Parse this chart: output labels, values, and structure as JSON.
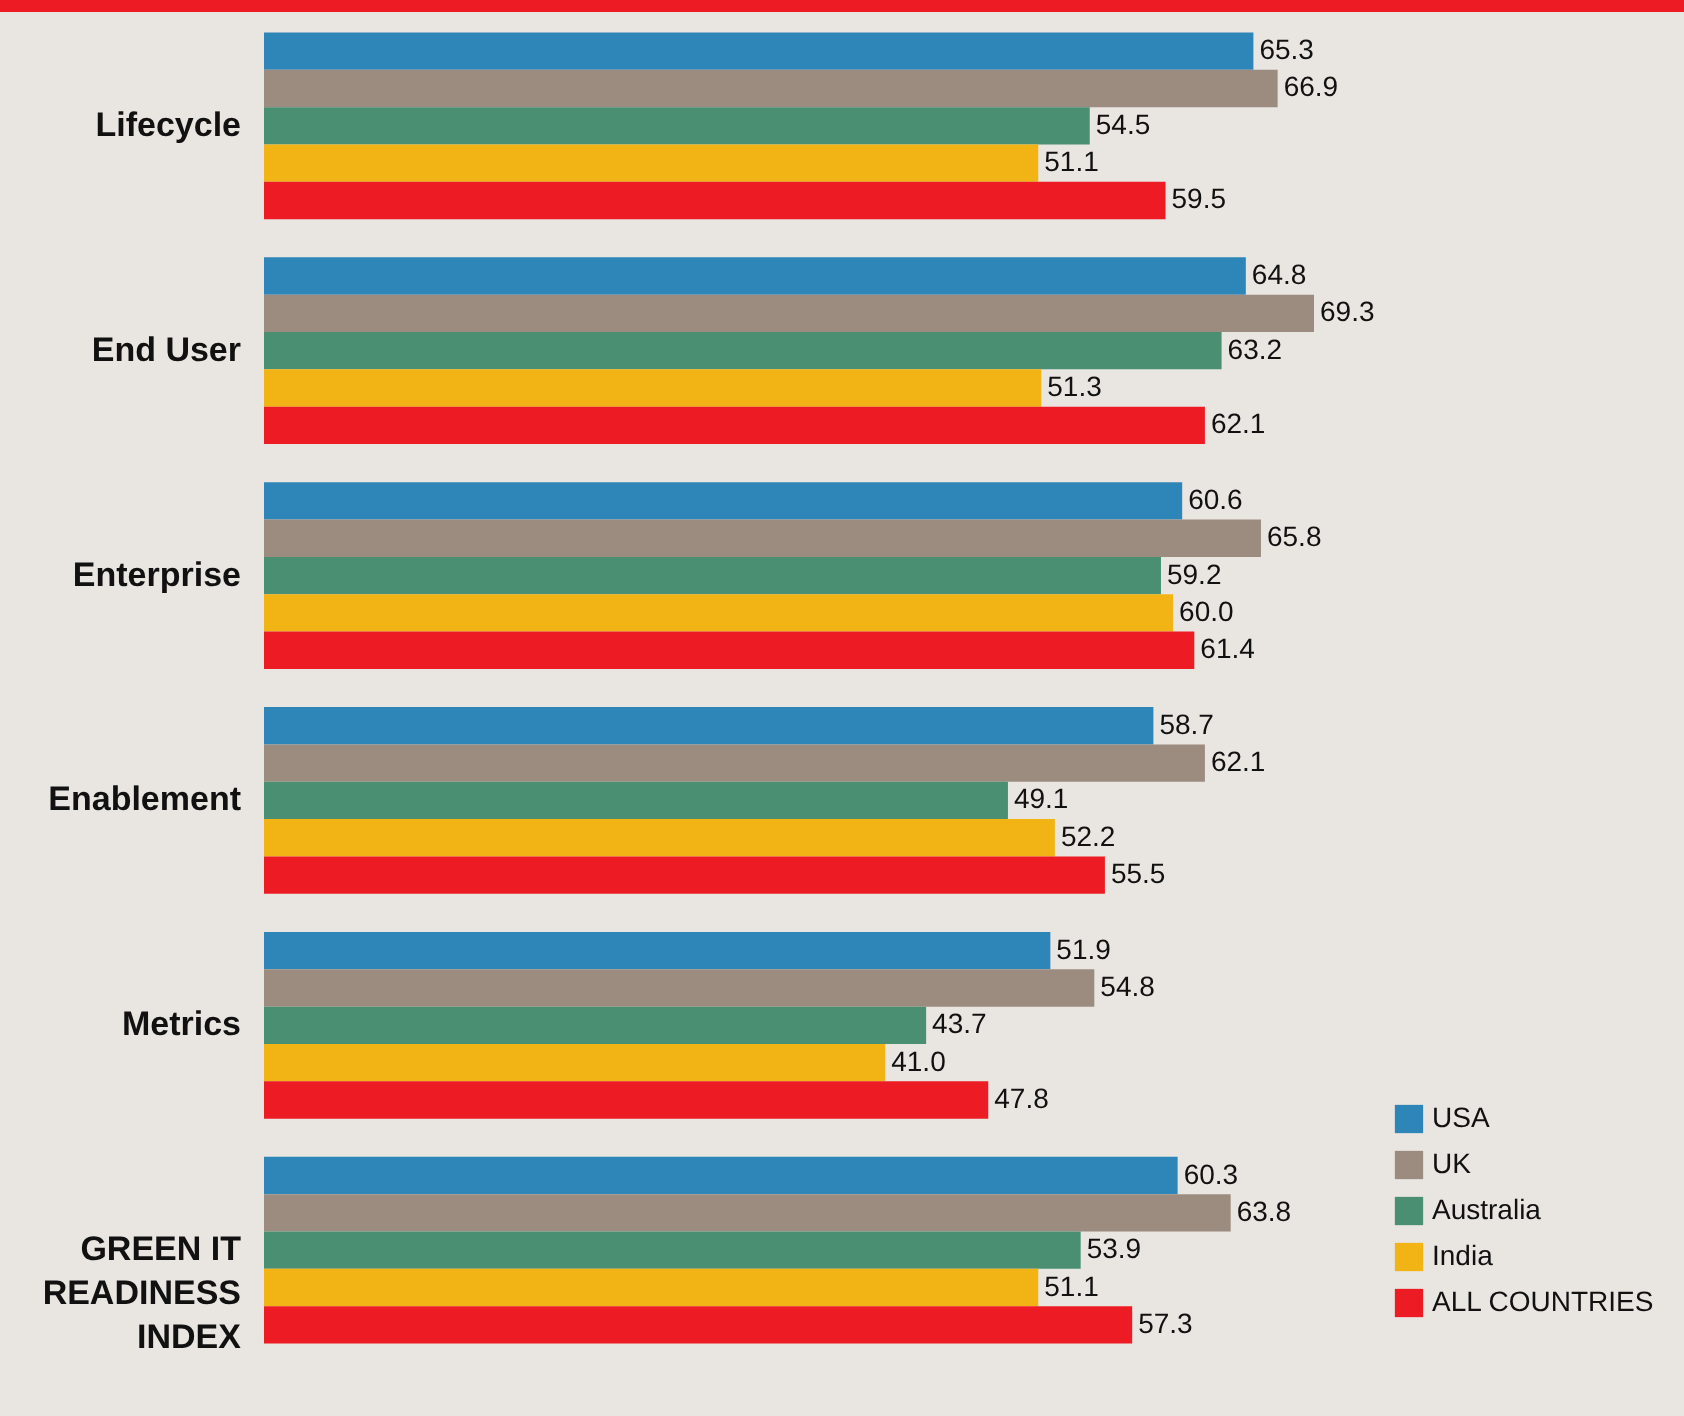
{
  "chart_data": {
    "type": "bar",
    "orientation": "horizontal",
    "categories": [
      "Lifecycle",
      "End User",
      "Enterprise",
      "Enablement",
      "Metrics",
      "GREEN IT READINESS INDEX"
    ],
    "series": [
      {
        "name": "USA",
        "color": "#2e86b8",
        "values": [
          65.3,
          64.8,
          60.6,
          58.7,
          51.9,
          60.3
        ],
        "value_labels": [
          "65.3",
          "64.8",
          "60.6",
          "58.7",
          "51.9",
          "60.3"
        ]
      },
      {
        "name": "UK",
        "color": "#9c8c7f",
        "values": [
          66.9,
          69.3,
          65.8,
          62.1,
          54.8,
          63.8
        ],
        "value_labels": [
          "66.9",
          "69.3",
          "65.8",
          "62.1",
          "54.8",
          "63.8"
        ]
      },
      {
        "name": "Australia",
        "color": "#4a8f72",
        "values": [
          54.5,
          63.2,
          59.2,
          49.1,
          43.7,
          53.9
        ],
        "value_labels": [
          "54.5",
          "63.2",
          "59.2",
          "49.1",
          "43.7",
          "53.9"
        ]
      },
      {
        "name": "India",
        "color": "#f2b315",
        "values": [
          51.1,
          51.3,
          60.0,
          52.2,
          41.0,
          51.1
        ],
        "value_labels": [
          "51.1",
          "51.3",
          "60.0",
          "52.2",
          "41.0",
          "51.1"
        ]
      },
      {
        "name": "ALL COUNTRIES",
        "color": "#ed1c24",
        "values": [
          59.5,
          62.1,
          61.4,
          55.5,
          47.8,
          57.3
        ],
        "value_labels": [
          "59.5",
          "62.1",
          "61.4",
          "55.5",
          "47.8",
          "57.3"
        ]
      }
    ],
    "legend": "bottom right",
    "tick_labels": "y"
  }
}
